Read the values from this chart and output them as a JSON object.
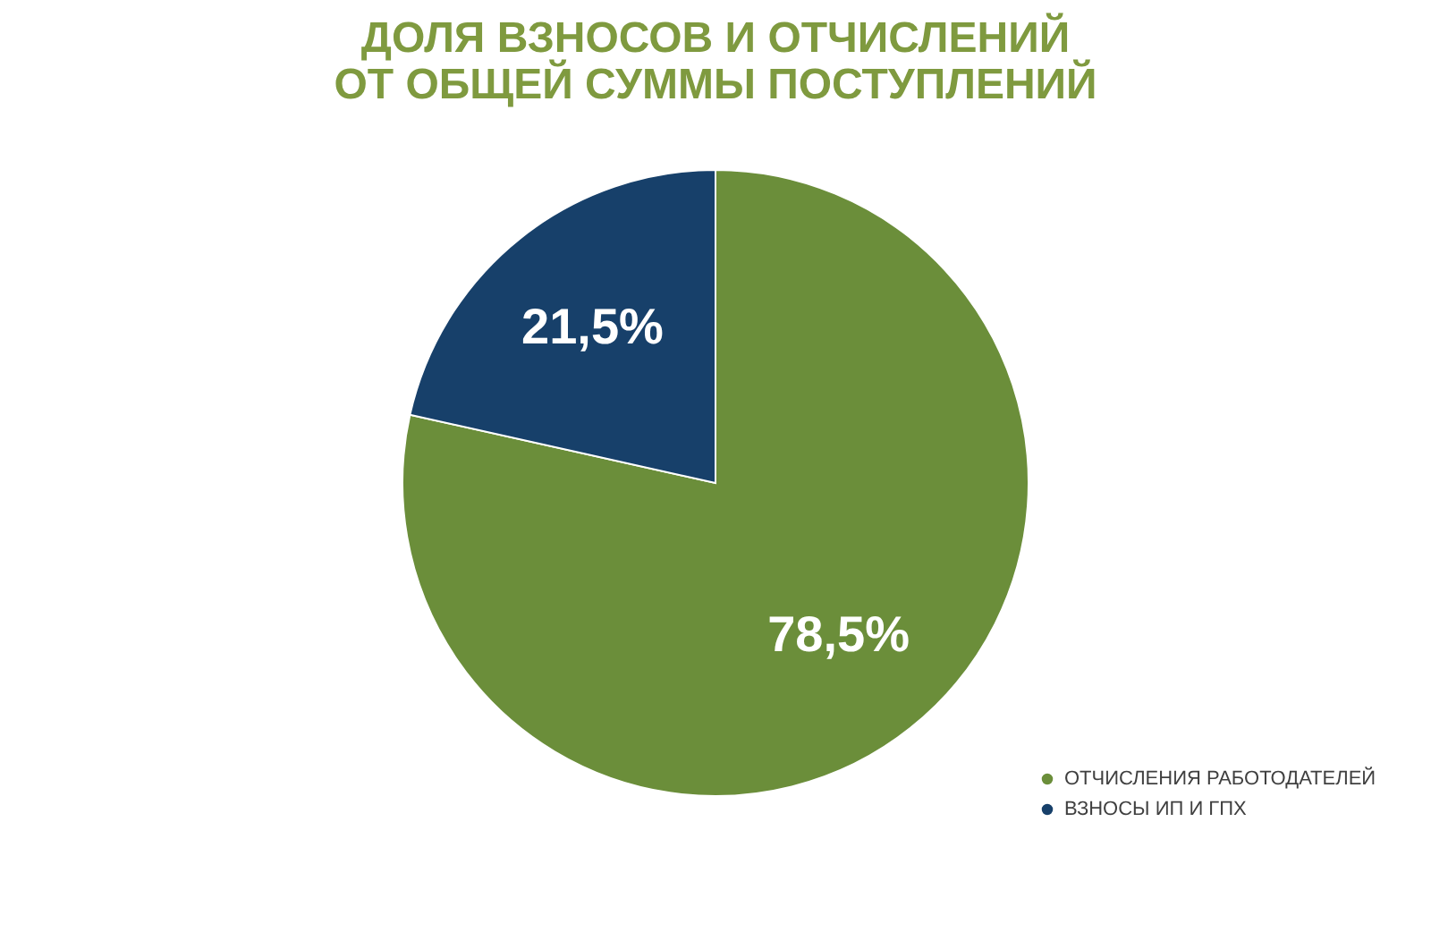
{
  "chart_data": {
    "type": "pie",
    "title": "ДОЛЯ ВЗНОСОВ И ОТЧИСЛЕНИЙ ОТ ОБЩЕЙ СУММЫ ПОСТУПЛЕНИЙ",
    "categories": [
      "ОТЧИСЛЕНИЯ РАБОТОДАТЕЛЕЙ",
      "ВЗНОСЫ ИП И ГПХ"
    ],
    "values": [
      78.5,
      21.5
    ],
    "colors": [
      "#6b8e3a",
      "#17406a"
    ],
    "value_labels": [
      "78,5%",
      "21,5%"
    ],
    "legend": "bottom right"
  }
}
